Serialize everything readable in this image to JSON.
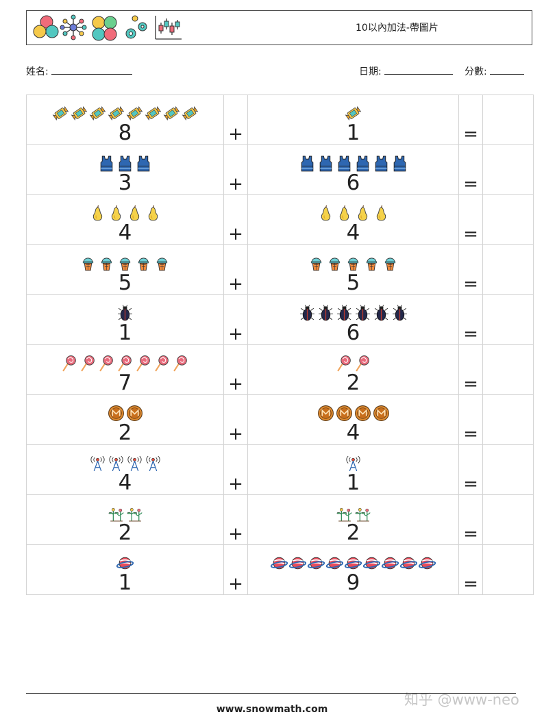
{
  "header": {
    "title": "10以內加法-帶圖片"
  },
  "form": {
    "name_label": "姓名:",
    "date_label": "日期:",
    "score_label": "分數:"
  },
  "operators": {
    "plus": "+",
    "equals": "="
  },
  "problems": [
    {
      "left": {
        "count": 8,
        "icon": "candy-wrapper-icon"
      },
      "right": {
        "count": 1,
        "icon": "candy-wrapper-icon"
      }
    },
    {
      "left": {
        "count": 3,
        "icon": "tank-top-icon"
      },
      "right": {
        "count": 6,
        "icon": "tank-top-icon"
      }
    },
    {
      "left": {
        "count": 4,
        "icon": "pear-icon"
      },
      "right": {
        "count": 4,
        "icon": "pear-icon"
      }
    },
    {
      "left": {
        "count": 5,
        "icon": "ice-cream-cone-icon"
      },
      "right": {
        "count": 5,
        "icon": "ice-cream-cone-icon"
      }
    },
    {
      "left": {
        "count": 1,
        "icon": "beetle-icon"
      },
      "right": {
        "count": 6,
        "icon": "beetle-icon"
      }
    },
    {
      "left": {
        "count": 7,
        "icon": "lollipop-icon"
      },
      "right": {
        "count": 2,
        "icon": "lollipop-icon"
      }
    },
    {
      "left": {
        "count": 2,
        "icon": "monero-coin-icon"
      },
      "right": {
        "count": 4,
        "icon": "monero-coin-icon"
      }
    },
    {
      "left": {
        "count": 4,
        "icon": "radio-tower-icon"
      },
      "right": {
        "count": 1,
        "icon": "radio-tower-icon"
      }
    },
    {
      "left": {
        "count": 2,
        "icon": "sprout-icon"
      },
      "right": {
        "count": 2,
        "icon": "sprout-icon"
      }
    },
    {
      "left": {
        "count": 1,
        "icon": "planet-icon"
      },
      "right": {
        "count": 9,
        "icon": "planet-icon"
      }
    }
  ],
  "footer": {
    "website": "www.snowmath.com"
  },
  "watermark": "知乎 @www-neo",
  "colors": {
    "border": "#d4d4d4",
    "text": "#222222",
    "watermark": "#c6c6c6"
  }
}
